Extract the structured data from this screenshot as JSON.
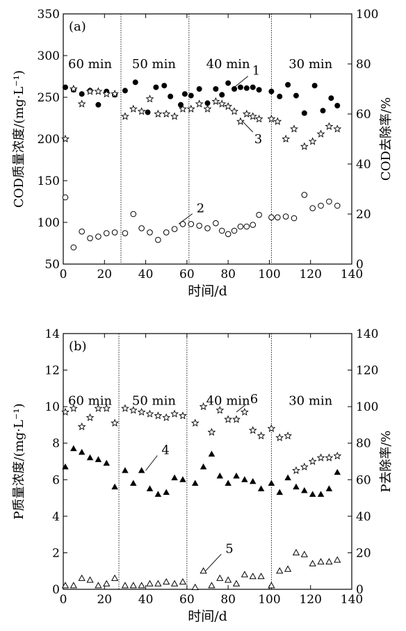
{
  "chart_data": [
    {
      "type": "scatter",
      "panel_label": "(a)",
      "xlabel": "时间/d",
      "ylabel": "COD质量浓度/(mg·L⁻¹)",
      "y2label": "COD去除率/%",
      "xlim": [
        0,
        140
      ],
      "ylim": [
        50,
        350
      ],
      "y2lim": [
        0,
        100
      ],
      "xticks": [
        0,
        20,
        40,
        60,
        80,
        100,
        120,
        140
      ],
      "yticks": [
        50,
        100,
        150,
        200,
        250,
        300,
        350
      ],
      "y2ticks": [
        0,
        20,
        40,
        60,
        80,
        100
      ],
      "phase_dividers": [
        28,
        61,
        101
      ],
      "phases": [
        {
          "label": "60 min",
          "x": 13
        },
        {
          "label": "50 min",
          "x": 44
        },
        {
          "label": "40 min",
          "x": 80
        },
        {
          "label": "30 min",
          "x": 120
        }
      ],
      "series": [
        {
          "name": "1",
          "marker": "filled-circle",
          "axis": "left",
          "x": [
            1,
            5,
            9,
            13,
            17,
            21,
            25,
            30,
            35,
            41,
            45,
            49,
            52,
            57,
            59,
            62,
            66,
            70,
            74,
            77,
            80,
            83,
            86,
            89,
            92,
            95,
            101,
            105,
            109,
            113,
            117,
            122,
            126,
            130,
            133
          ],
          "y": [
            262,
            259,
            254,
            258,
            241,
            257,
            253,
            258,
            268,
            232,
            262,
            264,
            251,
            241,
            254,
            252,
            260,
            243,
            260,
            253,
            267,
            260,
            262,
            261,
            262,
            259,
            257,
            251,
            265,
            252,
            231,
            264,
            234,
            249,
            240
          ]
        },
        {
          "name": "2",
          "marker": "open-circle",
          "axis": "left",
          "x": [
            1,
            5,
            9,
            13,
            17,
            21,
            25,
            30,
            34,
            38,
            42,
            46,
            50,
            54,
            58,
            62,
            66,
            70,
            74,
            77,
            80,
            83,
            86,
            89,
            92,
            95,
            101,
            104,
            108,
            112,
            117,
            121,
            125,
            129,
            133
          ],
          "y": [
            130,
            70,
            89,
            81,
            83,
            87,
            88,
            87,
            110,
            93,
            88,
            79,
            88,
            92,
            98,
            98,
            96,
            93,
            99,
            90,
            86,
            90,
            95,
            95,
            97,
            109,
            106,
            106,
            107,
            105,
            133,
            117,
            120,
            125,
            120
          ]
        },
        {
          "name": "3",
          "marker": "star",
          "axis": "right",
          "x": [
            1,
            5,
            9,
            13,
            17,
            21,
            25,
            30,
            34,
            38,
            42,
            46,
            50,
            54,
            58,
            62,
            66,
            70,
            74,
            77,
            80,
            83,
            86,
            89,
            92,
            95,
            101,
            104,
            108,
            112,
            117,
            121,
            125,
            129,
            133
          ],
          "y": [
            50,
            70,
            64,
            69,
            69,
            68,
            68,
            59,
            62,
            61,
            66,
            60,
            60,
            59,
            62,
            62,
            64,
            62,
            65,
            64,
            63,
            61,
            57,
            60,
            59,
            58,
            58,
            57,
            50,
            54,
            47,
            49,
            52,
            55,
            54
          ]
        }
      ],
      "annotations": [
        {
          "text": "1",
          "x": 91,
          "y": 277
        },
        {
          "text": "2",
          "x": 64,
          "y": 112
        },
        {
          "text": "3",
          "x": 92,
          "y": 195
        }
      ]
    },
    {
      "type": "scatter",
      "panel_label": "(b)",
      "xlabel": "时间/d",
      "ylabel": "P质量浓度/(mg·L⁻¹)",
      "y2label": "P去除率/%",
      "xlim": [
        0,
        140
      ],
      "ylim": [
        0,
        14
      ],
      "y2lim": [
        0,
        140
      ],
      "xticks": [
        0,
        20,
        40,
        60,
        80,
        100,
        120,
        140
      ],
      "yticks": [
        0,
        2,
        4,
        6,
        8,
        10,
        12,
        14
      ],
      "y2ticks": [
        0,
        20,
        40,
        60,
        80,
        100,
        120,
        140
      ],
      "phase_dividers": [
        27,
        60,
        101
      ],
      "phases": [
        {
          "label": "60 min",
          "x": 13
        },
        {
          "label": "50 min",
          "x": 44
        },
        {
          "label": "40 min",
          "x": 80
        },
        {
          "label": "30 min",
          "x": 120
        }
      ],
      "series": [
        {
          "name": "4",
          "marker": "filled-triangle",
          "axis": "left",
          "x": [
            1,
            5,
            9,
            13,
            17,
            21,
            25,
            30,
            34,
            38,
            42,
            46,
            50,
            54,
            58,
            64,
            68,
            72,
            76,
            80,
            84,
            88,
            92,
            96,
            101,
            105,
            109,
            113,
            117,
            121,
            125,
            129,
            133
          ],
          "y": [
            6.7,
            7.7,
            7.5,
            7.2,
            7.1,
            6.9,
            5.6,
            6.5,
            5.8,
            6.5,
            5.5,
            5.2,
            5.3,
            6.1,
            6.0,
            5.8,
            6.7,
            7.4,
            6.2,
            5.8,
            6.2,
            6.0,
            5.9,
            5.5,
            5.8,
            5.3,
            6.1,
            5.6,
            5.4,
            5.2,
            5.2,
            5.5,
            6.4
          ]
        },
        {
          "name": "5",
          "marker": "open-triangle",
          "axis": "left",
          "x": [
            1,
            5,
            9,
            13,
            17,
            21,
            25,
            30,
            34,
            38,
            42,
            46,
            50,
            54,
            58,
            64,
            68,
            72,
            76,
            80,
            84,
            88,
            92,
            96,
            101,
            105,
            109,
            113,
            117,
            121,
            125,
            129,
            133
          ],
          "y": [
            0.2,
            0.2,
            0.6,
            0.5,
            0.2,
            0.3,
            0.6,
            0.2,
            0.2,
            0.2,
            0.3,
            0.3,
            0.4,
            0.3,
            0.4,
            0.1,
            1.0,
            0.2,
            0.6,
            0.5,
            0.3,
            0.8,
            0.7,
            0.7,
            0.2,
            1.0,
            1.1,
            2.0,
            1.9,
            1.4,
            1.5,
            1.5,
            1.6
          ]
        },
        {
          "name": "6",
          "marker": "star",
          "axis": "right",
          "x": [
            1,
            5,
            9,
            13,
            17,
            21,
            25,
            30,
            34,
            38,
            42,
            46,
            50,
            54,
            58,
            64,
            68,
            72,
            76,
            80,
            84,
            88,
            92,
            96,
            101,
            105,
            109,
            113,
            117,
            121,
            125,
            129,
            133
          ],
          "y": [
            97,
            99,
            89,
            94,
            99,
            99,
            91,
            99,
            98,
            97,
            96,
            95,
            94,
            96,
            95,
            91,
            100,
            86,
            98,
            93,
            93,
            97,
            87,
            84,
            88,
            83,
            84,
            65,
            67,
            70,
            72,
            72,
            73
          ]
        }
      ],
      "annotations": [
        {
          "text": "4",
          "x": 47,
          "y": 7.4
        },
        {
          "text": "5",
          "x": 78,
          "y": 2.0
        },
        {
          "text": "6",
          "x": 90,
          "y": 102
        }
      ]
    }
  ]
}
